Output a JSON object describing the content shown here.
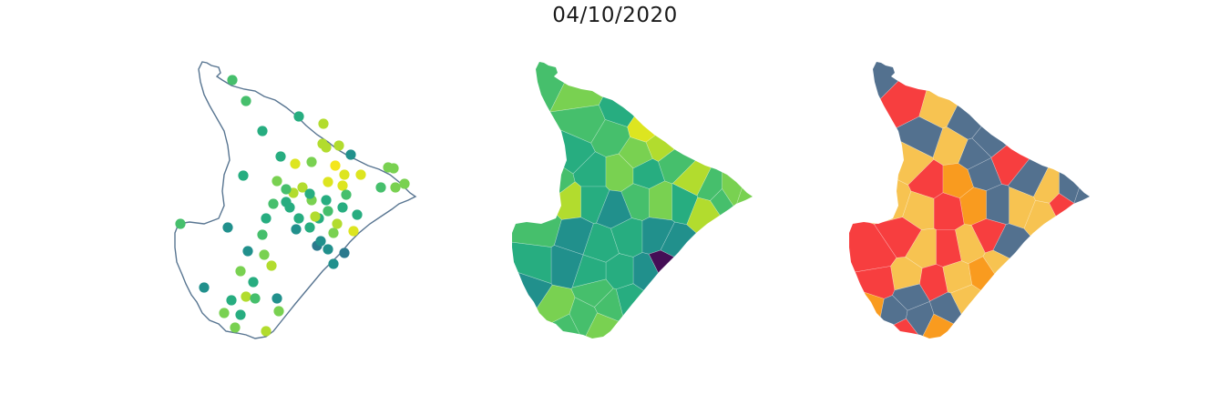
{
  "title": "04/10/2020",
  "colors": {
    "outline": "#587591",
    "viridis": [
      "#450e56",
      "#2b798d",
      "#21908c",
      "#27ad80",
      "#46bf6c",
      "#79d151",
      "#b2dc2e",
      "#dde520",
      "#f4e61d"
    ],
    "risk": [
      "#53718f",
      "#f7c351",
      "#f99b1f",
      "#f73e3f"
    ]
  },
  "panels": [
    {
      "name": "points-map",
      "kind": "points"
    },
    {
      "name": "choropleth-map",
      "kind": "choropleth"
    },
    {
      "name": "risk-map",
      "kind": "categorical"
    }
  ]
}
